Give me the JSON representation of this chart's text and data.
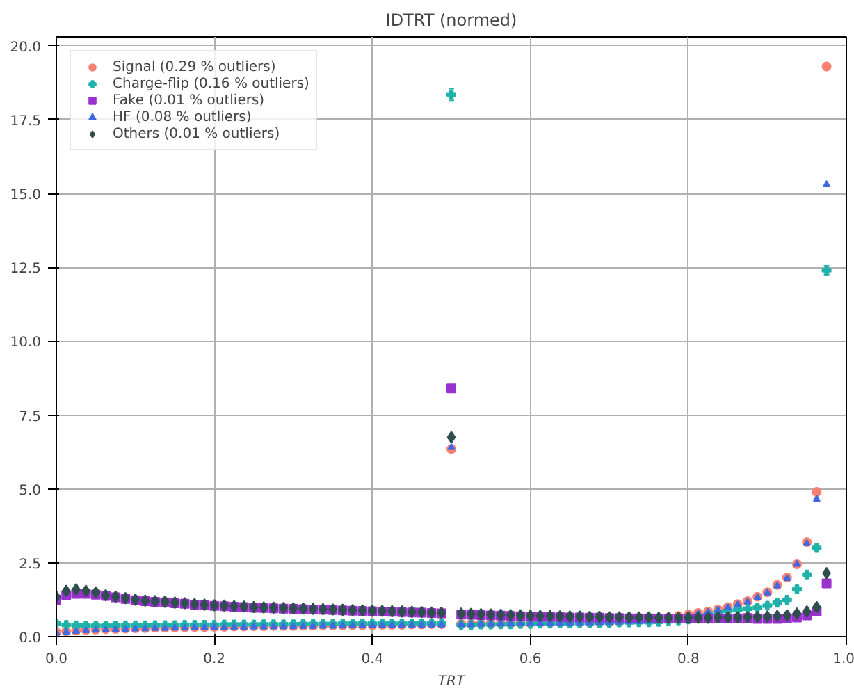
{
  "chart_data": {
    "type": "scatter",
    "title": "IDTRT (normed)",
    "xlabel": "TRT",
    "x": [
      0,
      0.0125,
      0.025,
      0.0375,
      0.05,
      0.0625,
      0.075,
      0.0875,
      0.1,
      0.1125,
      0.125,
      0.1375,
      0.15,
      0.1625,
      0.175,
      0.1875,
      0.2,
      0.2125,
      0.225,
      0.2375,
      0.25,
      0.2625,
      0.275,
      0.2875,
      0.3,
      0.3125,
      0.325,
      0.3375,
      0.35,
      0.3625,
      0.375,
      0.3875,
      0.4,
      0.4125,
      0.425,
      0.4375,
      0.45,
      0.4625,
      0.475,
      0.4875,
      0.5,
      0.5125,
      0.525,
      0.5375,
      0.55,
      0.5625,
      0.575,
      0.5875,
      0.6,
      0.6125,
      0.625,
      0.6375,
      0.65,
      0.6625,
      0.675,
      0.6875,
      0.7,
      0.7125,
      0.725,
      0.7375,
      0.75,
      0.7625,
      0.775,
      0.7875,
      0.8,
      0.8125,
      0.825,
      0.8375,
      0.85,
      0.8625,
      0.875,
      0.8875,
      0.9,
      0.9125,
      0.925,
      0.9375,
      0.95,
      0.9625,
      0.975
    ],
    "series": [
      {
        "name": "Signal (0.29 % outliers)",
        "color": "#fa8072",
        "marker": "circle",
        "values": [
          0.15,
          0.18,
          0.2,
          0.22,
          0.24,
          0.25,
          0.26,
          0.27,
          0.28,
          0.29,
          0.3,
          0.3,
          0.31,
          0.31,
          0.32,
          0.32,
          0.33,
          0.33,
          0.34,
          0.34,
          0.35,
          0.35,
          0.36,
          0.36,
          0.36,
          0.37,
          0.37,
          0.38,
          0.38,
          0.38,
          0.39,
          0.39,
          0.39,
          0.4,
          0.4,
          0.4,
          0.41,
          0.41,
          0.42,
          0.42,
          6.35,
          0.43,
          0.43,
          0.44,
          0.44,
          0.45,
          0.45,
          0.46,
          0.46,
          0.47,
          0.47,
          0.48,
          0.48,
          0.49,
          0.49,
          0.5,
          0.5,
          0.51,
          null,
          null,
          null,
          null,
          0.65,
          0.7,
          0.75,
          0.8,
          0.85,
          0.92,
          1.0,
          1.1,
          1.2,
          1.35,
          1.5,
          1.75,
          2.0,
          2.45,
          3.2,
          4.9,
          19.3
        ]
      },
      {
        "name": "Charge-flip (0.16 % outliers)",
        "color": "#20b2aa",
        "marker": "cross",
        "values": [
          0.45,
          0.4,
          0.38,
          0.37,
          0.37,
          0.37,
          0.37,
          0.38,
          0.38,
          0.38,
          0.39,
          0.39,
          0.39,
          0.4,
          0.4,
          0.4,
          0.4,
          0.41,
          0.41,
          0.41,
          0.41,
          0.42,
          0.42,
          0.42,
          0.42,
          0.43,
          0.43,
          0.43,
          0.43,
          0.44,
          0.44,
          0.44,
          0.44,
          0.44,
          0.45,
          0.45,
          0.45,
          0.45,
          0.45,
          0.45,
          18.35,
          0.4,
          0.4,
          0.41,
          0.41,
          0.42,
          0.42,
          0.43,
          0.43,
          0.44,
          0.44,
          0.45,
          0.45,
          0.46,
          0.46,
          0.47,
          0.47,
          0.48,
          0.48,
          0.49,
          0.49,
          0.5,
          0.52,
          0.55,
          0.58,
          null,
          0.74,
          0.82,
          0.88,
          0.92,
          0.95,
          0.98,
          1.05,
          1.15,
          1.25,
          1.6,
          2.1,
          3.0,
          12.4
        ],
        "errors": [
          null,
          null,
          null,
          null,
          null,
          null,
          null,
          null,
          null,
          null,
          null,
          null,
          null,
          null,
          null,
          null,
          null,
          null,
          null,
          null,
          null,
          null,
          null,
          null,
          null,
          null,
          null,
          null,
          null,
          null,
          null,
          null,
          null,
          null,
          null,
          null,
          null,
          null,
          null,
          null,
          0.2,
          null,
          null,
          null,
          null,
          null,
          null,
          null,
          null,
          null,
          null,
          null,
          null,
          null,
          null,
          null,
          null,
          null,
          null,
          null,
          null,
          null,
          null,
          null,
          null,
          null,
          null,
          null,
          null,
          null,
          null,
          null,
          null,
          null,
          null,
          null,
          null,
          null,
          0.15
        ]
      },
      {
        "name": "Fake (0.01 % outliers)",
        "color": "#9932cc",
        "marker": "square",
        "values": [
          1.25,
          1.4,
          1.45,
          1.45,
          1.42,
          1.38,
          1.33,
          1.28,
          1.23,
          1.2,
          1.18,
          1.16,
          1.13,
          1.11,
          1.08,
          1.06,
          1.04,
          1.03,
          1.01,
          1.0,
          0.98,
          0.97,
          0.96,
          0.95,
          0.94,
          0.93,
          0.92,
          0.91,
          0.9,
          0.89,
          0.88,
          0.87,
          0.86,
          0.85,
          0.84,
          0.83,
          0.82,
          0.81,
          0.8,
          0.79,
          8.4,
          0.75,
          0.74,
          0.73,
          0.72,
          0.71,
          0.7,
          0.69,
          0.68,
          0.67,
          0.67,
          0.66,
          0.65,
          0.65,
          0.64,
          0.64,
          0.63,
          0.63,
          0.62,
          0.62,
          0.62,
          0.61,
          0.61,
          0.61,
          0.61,
          0.61,
          0.61,
          0.62,
          0.62,
          0.62,
          0.63,
          0.6,
          0.6,
          0.6,
          0.62,
          0.65,
          0.72,
          0.85,
          1.8
        ]
      },
      {
        "name": "HF (0.08 % outliers)",
        "color": "#4169e1",
        "marker": "triangle",
        "values": [
          0.12,
          0.15,
          0.18,
          0.2,
          0.22,
          0.23,
          0.24,
          0.25,
          0.26,
          0.27,
          0.28,
          0.28,
          0.29,
          0.29,
          0.3,
          0.3,
          0.31,
          0.31,
          0.32,
          0.32,
          0.33,
          0.33,
          0.34,
          0.34,
          0.34,
          0.35,
          0.35,
          0.36,
          0.36,
          0.36,
          0.37,
          0.37,
          0.37,
          0.38,
          0.38,
          0.38,
          0.39,
          0.39,
          0.4,
          0.4,
          6.4,
          0.41,
          0.41,
          0.42,
          0.42,
          0.43,
          0.43,
          0.44,
          0.44,
          0.45,
          0.45,
          0.46,
          0.46,
          0.47,
          0.47,
          0.48,
          0.48,
          0.49,
          0.5,
          0.51,
          0.52,
          0.58,
          0.63,
          null,
          0.73,
          0.78,
          0.83,
          0.9,
          0.98,
          1.08,
          1.18,
          1.33,
          1.48,
          1.72,
          1.97,
          2.45,
          3.15,
          4.65,
          15.3
        ]
      },
      {
        "name": "Others (0.01 % outliers)",
        "color": "#2f4f4f",
        "marker": "diamond",
        "values": [
          1.35,
          1.55,
          1.6,
          1.55,
          1.5,
          1.4,
          1.35,
          1.3,
          1.25,
          1.22,
          1.2,
          1.18,
          1.15,
          1.13,
          1.1,
          1.08,
          1.06,
          1.05,
          1.03,
          1.02,
          1.0,
          0.99,
          0.98,
          0.97,
          0.96,
          0.95,
          0.94,
          0.93,
          0.92,
          0.91,
          0.9,
          0.89,
          0.88,
          0.87,
          0.86,
          0.85,
          0.84,
          0.83,
          0.82,
          0.81,
          6.75,
          0.78,
          0.77,
          0.76,
          0.75,
          0.74,
          0.73,
          0.72,
          0.71,
          0.7,
          0.7,
          0.69,
          0.68,
          0.68,
          0.67,
          0.67,
          0.66,
          0.66,
          0.65,
          0.65,
          0.65,
          0.64,
          0.64,
          0.64,
          0.64,
          0.64,
          0.64,
          0.65,
          0.65,
          0.65,
          0.66,
          0.67,
          0.68,
          0.7,
          0.72,
          0.78,
          0.85,
          1.0,
          2.15
        ]
      }
    ],
    "xlim": [
      0,
      1
    ],
    "ylim": [
      0,
      20.3
    ],
    "xticks": [
      {
        "value": 0,
        "label": "0.0"
      },
      {
        "value": 0.2,
        "label": "0.2"
      },
      {
        "value": 0.4,
        "label": "0.4"
      },
      {
        "value": 0.6,
        "label": "0.6"
      },
      {
        "value": 0.8,
        "label": "0.8"
      },
      {
        "value": 1,
        "label": "1.0"
      }
    ],
    "yticks": [
      {
        "value": 0,
        "label": "0.0"
      },
      2.5,
      {
        "value": 5,
        "label": "5.0"
      },
      7.5,
      {
        "value": 10,
        "label": "10.0"
      },
      12.5,
      {
        "value": 15,
        "label": "15.0"
      },
      17.5,
      {
        "value": 20,
        "label": "20.0"
      }
    ],
    "grid": true,
    "legend": "top left"
  }
}
